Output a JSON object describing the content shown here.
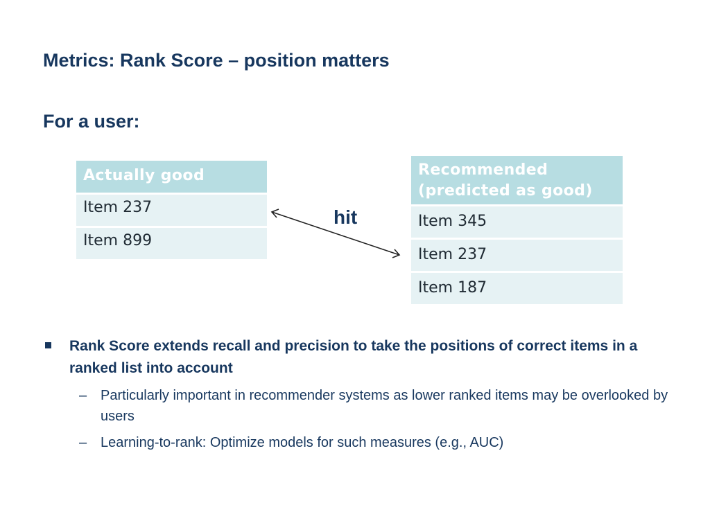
{
  "slide": {
    "title": "Metrics: Rank Score – position matters",
    "subtitle": "For a user:"
  },
  "left_table": {
    "header": "Actually good",
    "items": [
      "Item 237",
      "Item 899"
    ]
  },
  "right_table": {
    "header_line1": "Recommended",
    "header_line2": "(predicted as good)",
    "items": [
      "Item 345",
      "Item 237",
      "Item 187"
    ]
  },
  "hit_label": "hit",
  "bullets": {
    "main": "Rank Score extends recall and precision to take the positions of correct items in a ranked list into account",
    "sub": [
      "Particularly important in recommender systems as lower ranked items may be overlooked by users",
      "Learning-to-rank: Optimize models for such measures (e.g., AUC)"
    ],
    "sub_marker": "–"
  },
  "colors": {
    "title": "#17375e",
    "table_header": "#b7dde2",
    "table_cell": "#e6f2f4"
  }
}
